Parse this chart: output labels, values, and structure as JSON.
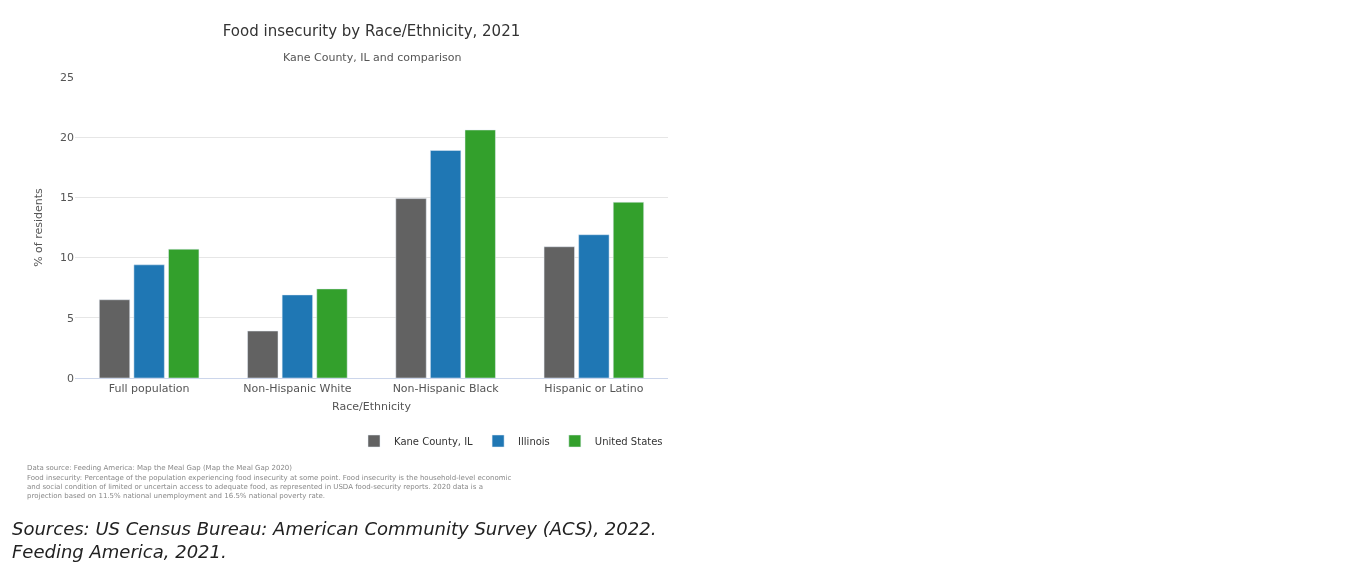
{
  "chart_data": {
    "type": "bar",
    "title": "Food insecurity by Race/Ethnicity, 2021",
    "subtitle": "Kane County, IL and comparison",
    "xlabel": "Race/Ethnicity",
    "ylabel": "% of residents",
    "categories": [
      "Full population",
      "Non-Hispanic White",
      "Non-Hispanic Black",
      "Hispanic or Latino"
    ],
    "series": [
      {
        "name": "Kane County, IL",
        "color": "#626262",
        "values": [
          6.5,
          3.9,
          14.9,
          10.9
        ]
      },
      {
        "name": "Illinois",
        "color": "#1f77b4",
        "values": [
          9.4,
          6.9,
          18.9,
          11.9
        ]
      },
      {
        "name": "United States",
        "color": "#33a02c",
        "values": [
          10.7,
          7.4,
          20.6,
          14.6
        ]
      }
    ],
    "ylim": [
      0,
      25
    ],
    "yticks": [
      0,
      5,
      10,
      15,
      20,
      25
    ],
    "grid": "y",
    "legend": "bottom right",
    "annotations": [
      "Data source: Feeding America: Map the Meal Gap (Map the Meal Gap 2020)",
      "Food insecurity: Percentage of the population experiencing food insecurity at some point. Food insecurity is the household-level economic and social condition of limited or uncertain access to adequate food, as represented in USDA food-security reports. 2020 data is a projection based on 11.5% national unemployment and 16.5% national poverty rate.",
      "Sources: US Census Bureau: American Community Survey (ACS), 2022. Feeding America, 2021."
    ]
  }
}
